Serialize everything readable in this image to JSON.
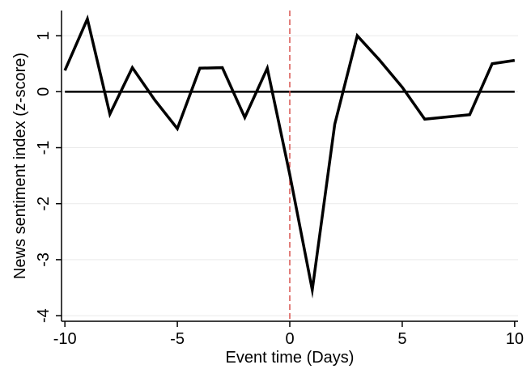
{
  "chart_data": {
    "type": "line",
    "title": "",
    "xlabel": "Event time (Days)",
    "ylabel": "News sentiment index (z-score)",
    "xlim": [
      -10.15,
      10.15
    ],
    "ylim": [
      -4.1,
      1.45
    ],
    "xticks": [
      -10,
      -5,
      0,
      5,
      10
    ],
    "xtick_labels": [
      "-10",
      "-5",
      "0",
      "5",
      "10"
    ],
    "yticks": [
      -4,
      -3,
      -2,
      -1,
      0,
      1
    ],
    "ytick_labels": [
      "-4",
      "-3",
      "-2",
      "-1",
      "0",
      "1"
    ],
    "grid": "horizontal",
    "legend": "none",
    "series": [
      {
        "x": [
          -10,
          -9,
          -8,
          -7,
          -6,
          -5,
          -4,
          -3,
          -2,
          -1,
          0,
          1,
          2,
          3,
          4,
          5,
          6,
          7,
          8,
          9,
          10
        ],
        "values": [
          0.38,
          1.3,
          -0.4,
          0.43,
          -0.15,
          -0.66,
          0.42,
          0.43,
          -0.46,
          0.42,
          -1.48,
          -3.54,
          -0.58,
          1.0,
          0.56,
          0.08,
          -0.49,
          -0.45,
          -0.41,
          0.5,
          0.56
        ],
        "color": "#000000"
      }
    ],
    "reference_lines": [
      {
        "axis": "y",
        "value": 0,
        "color": "#000000",
        "style": "solid"
      },
      {
        "axis": "x",
        "value": 0,
        "color": "#d9534f",
        "style": "dashed"
      }
    ]
  }
}
